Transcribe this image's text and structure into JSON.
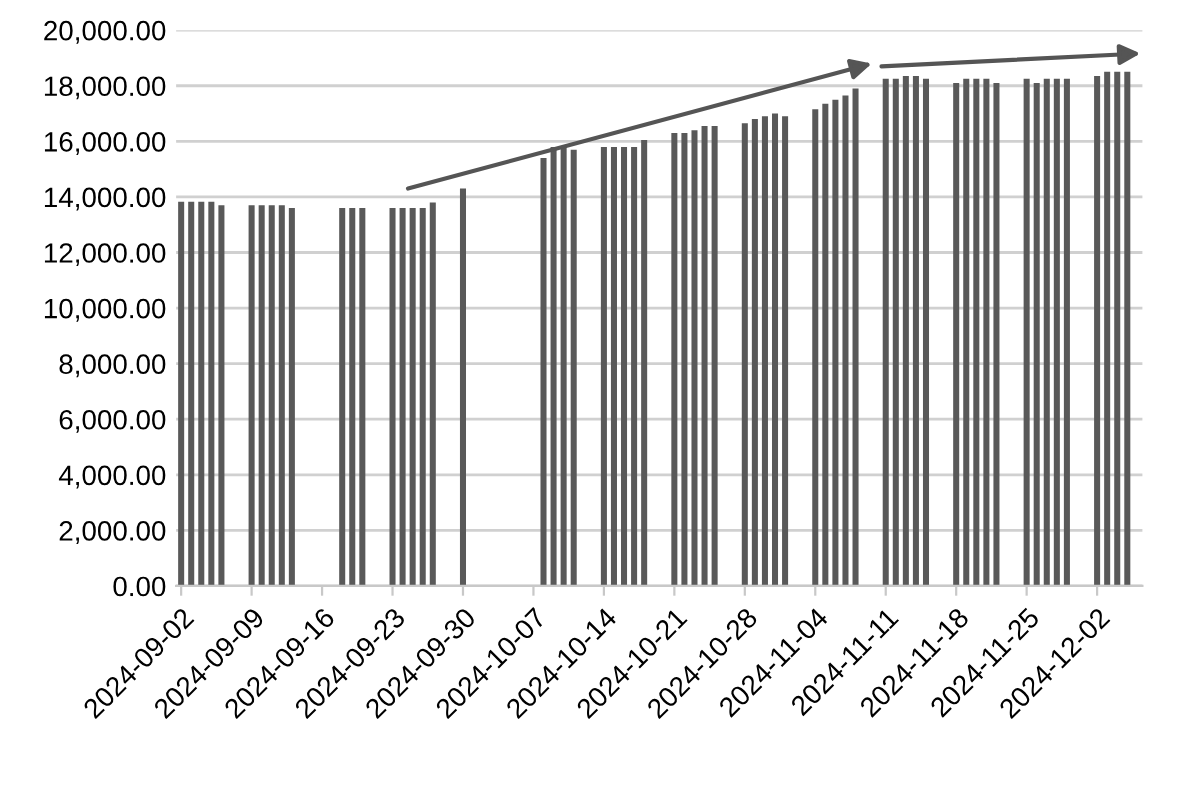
{
  "chart_data": {
    "type": "bar",
    "x": [
      "2024-09-02",
      "2024-09-03",
      "2024-09-04",
      "2024-09-05",
      "2024-09-06",
      "2024-09-09",
      "2024-09-10",
      "2024-09-11",
      "2024-09-12",
      "2024-09-13",
      "2024-09-18",
      "2024-09-19",
      "2024-09-20",
      "2024-09-23",
      "2024-09-24",
      "2024-09-25",
      "2024-09-26",
      "2024-09-27",
      "2024-09-30",
      "2024-10-08",
      "2024-10-09",
      "2024-10-10",
      "2024-10-11",
      "2024-10-14",
      "2024-10-15",
      "2024-10-16",
      "2024-10-17",
      "2024-10-18",
      "2024-10-21",
      "2024-10-22",
      "2024-10-23",
      "2024-10-24",
      "2024-10-25",
      "2024-10-28",
      "2024-10-29",
      "2024-10-30",
      "2024-10-31",
      "2024-11-01",
      "2024-11-04",
      "2024-11-05",
      "2024-11-06",
      "2024-11-07",
      "2024-11-08",
      "2024-11-11",
      "2024-11-12",
      "2024-11-13",
      "2024-11-14",
      "2024-11-15",
      "2024-11-18",
      "2024-11-19",
      "2024-11-20",
      "2024-11-21",
      "2024-11-22",
      "2024-11-25",
      "2024-11-26",
      "2024-11-27",
      "2024-11-28",
      "2024-11-29",
      "2024-12-02",
      "2024-12-03",
      "2024-12-04",
      "2024-12-05"
    ],
    "values": [
      13830,
      13830,
      13830,
      13830,
      13700,
      13700,
      13700,
      13700,
      13700,
      13600,
      13600,
      13600,
      13600,
      13600,
      13600,
      13600,
      13600,
      13800,
      14300,
      15400,
      15800,
      15800,
      15700,
      15800,
      15800,
      15800,
      15800,
      16050,
      16300,
      16300,
      16400,
      16550,
      16550,
      16650,
      16800,
      16900,
      17000,
      16900,
      17150,
      17350,
      17500,
      17650,
      17900,
      18250,
      18250,
      18350,
      18350,
      18250,
      18100,
      18250,
      18250,
      18250,
      18100,
      18250,
      18100,
      18250,
      18250,
      18250,
      18350,
      18500,
      18500,
      18500
    ],
    "color": "#595959",
    "xlim": [
      "2024-09-01T12:00",
      "2024-12-06T12:00"
    ],
    "xticks": [
      "2024-09-02",
      "2024-09-09",
      "2024-09-16",
      "2024-09-23",
      "2024-09-30",
      "2024-10-07",
      "2024-10-14",
      "2024-10-21",
      "2024-10-28",
      "2024-11-04",
      "2024-11-11",
      "2024-11-18",
      "2024-11-25",
      "2024-12-02"
    ],
    "ylim": [
      0,
      20000
    ],
    "yticks": [
      {
        "value": 0,
        "label": "0.00"
      },
      {
        "value": 2000,
        "label": "2,000.00"
      },
      {
        "value": 4000,
        "label": "4,000.00"
      },
      {
        "value": 6000,
        "label": "6,000.00"
      },
      {
        "value": 8000,
        "label": "8,000.00"
      },
      {
        "value": 10000,
        "label": "10,000.00"
      },
      {
        "value": 12000,
        "label": "12,000.00"
      },
      {
        "value": 14000,
        "label": "14,000.00"
      },
      {
        "value": 16000,
        "label": "16,000.00"
      },
      {
        "value": 18000,
        "label": "18,000.00"
      },
      {
        "value": 20000,
        "label": "20,000.00"
      }
    ],
    "grid": "y"
  }
}
